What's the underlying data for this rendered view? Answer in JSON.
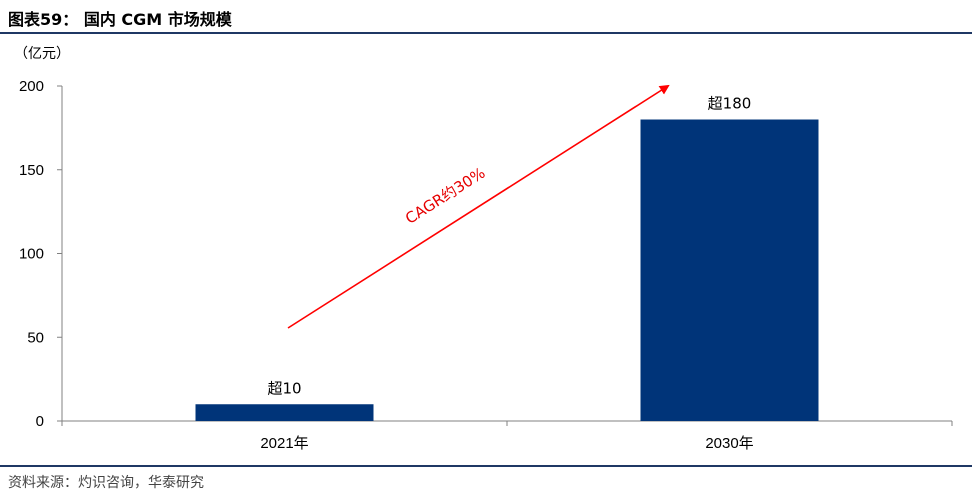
{
  "title": "图表59：  国内 CGM 市场规模",
  "source": "资料来源：灼识咨询，华泰研究",
  "chart_data": {
    "type": "bar",
    "unit_label": "（亿元）",
    "categories": [
      "2021年",
      "2030年"
    ],
    "values": [
      10,
      180
    ],
    "data_labels": [
      "超10",
      "超180"
    ],
    "ylim": [
      0,
      200
    ],
    "yticks": [
      0,
      50,
      100,
      150,
      200
    ],
    "bar_color": "#003479",
    "annotation": {
      "text": "CAGR约30%",
      "color": "#e60000"
    },
    "grid": false,
    "legend": "none"
  }
}
